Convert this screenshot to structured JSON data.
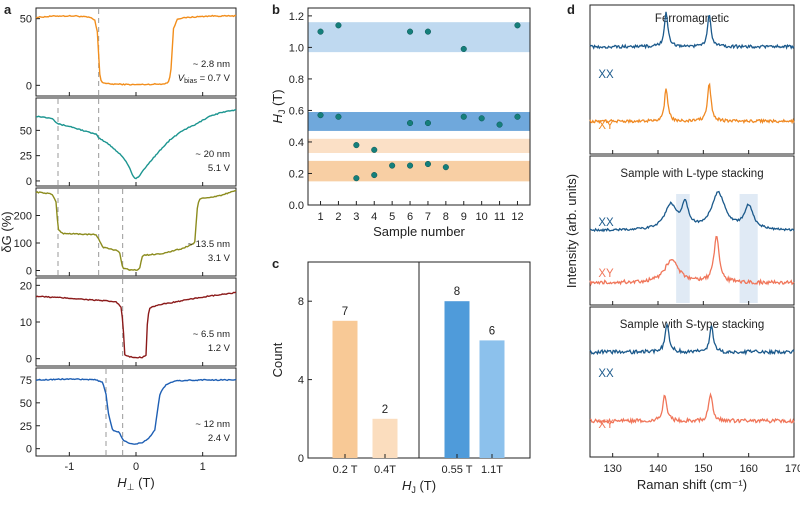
{
  "panel_labels": {
    "a": "a",
    "b": "b",
    "c": "c",
    "d": "d"
  },
  "chart_data": [
    {
      "panel": "a",
      "type": "line",
      "xlabel": "H⊥ (T)",
      "ylabel": "δG (%)",
      "xlim": [
        -1.5,
        1.5
      ],
      "xticks": [
        "-1",
        "0",
        "1"
      ],
      "subplots": [
        {
          "label1": "~ 2.8 nm",
          "label2_prefix": "V",
          "label2_sub": "bias",
          "label2_suffix": " = 0.7 V",
          "color": "#F28E1C",
          "ylim": [
            -8,
            58
          ],
          "yticks": [
            0,
            50
          ],
          "x": [
            -1.5,
            -1.2,
            -0.9,
            -0.7,
            -0.62,
            -0.58,
            -0.54,
            -0.5,
            -0.4,
            0,
            0.4,
            0.48,
            0.52,
            0.56,
            0.62,
            0.8,
            1.1,
            1.5
          ],
          "y": [
            51,
            52,
            52,
            51,
            49,
            40,
            5,
            2,
            1,
            0.5,
            1,
            2,
            8,
            42,
            50,
            51,
            52,
            52
          ],
          "dashed_x": [
            -0.56
          ]
        },
        {
          "label1": "~ 20 nm",
          "label2": "5.1 V",
          "color": "#1C9590",
          "ylim": [
            -5,
            82
          ],
          "yticks": [
            0,
            25,
            50
          ],
          "x": [
            -1.5,
            -1.25,
            -1.2,
            -1.15,
            -1.0,
            -0.8,
            -0.6,
            -0.55,
            -0.4,
            -0.2,
            -0.1,
            -0.05,
            0,
            0.05,
            0.15,
            0.3,
            0.5,
            0.7,
            0.9,
            1.0,
            1.1,
            1.3,
            1.5
          ],
          "y": [
            64,
            62,
            58,
            56,
            54,
            50,
            46,
            42,
            36,
            24,
            14,
            5,
            2,
            5,
            14,
            26,
            40,
            50,
            56,
            60,
            64,
            68,
            70
          ],
          "dashed_x": [
            -1.17,
            -0.56
          ]
        },
        {
          "label1": "~ 13.5 nm",
          "label2": "3.1 V",
          "color": "#8C8C1E",
          "ylim": [
            -20,
            300
          ],
          "yticks": [
            0,
            100,
            200
          ],
          "x": [
            -1.5,
            -1.3,
            -1.25,
            -1.2,
            -1.17,
            -1.1,
            -0.6,
            -0.56,
            -0.5,
            -0.25,
            -0.2,
            -0.1,
            0,
            0.05,
            0.1,
            0.4,
            0.7,
            0.88,
            0.92,
            0.95,
            1.1,
            1.3,
            1.5
          ],
          "y": [
            285,
            280,
            275,
            250,
            150,
            135,
            130,
            115,
            85,
            70,
            10,
            2,
            2,
            5,
            55,
            62,
            80,
            100,
            230,
            260,
            265,
            275,
            290
          ],
          "dashed_x": [
            -1.17,
            -0.56,
            -0.2
          ]
        },
        {
          "label1": "~ 6.5 nm",
          "label2": "1.2 V",
          "color": "#8B1A1A",
          "ylim": [
            -2,
            22
          ],
          "yticks": [
            0,
            10,
            20
          ],
          "x": [
            -1.5,
            -1.0,
            -0.5,
            -0.3,
            -0.22,
            -0.19,
            -0.17,
            -0.1,
            0,
            0.1,
            0.15,
            0.17,
            0.2,
            0.3,
            0.6,
            1.0,
            1.5
          ],
          "y": [
            17,
            16.5,
            15.8,
            15.5,
            14,
            8,
            1,
            0.5,
            0.3,
            0.4,
            1,
            10,
            13.8,
            14.5,
            15.5,
            16.8,
            18
          ],
          "dashed_x": [
            -0.2
          ]
        },
        {
          "label1": "~ 12 nm",
          "label2": "2.4 V",
          "color": "#1E5FB4",
          "ylim": [
            -8,
            88
          ],
          "yticks": [
            0,
            25,
            50,
            75
          ],
          "x": [
            -1.5,
            -1.0,
            -0.6,
            -0.5,
            -0.45,
            -0.42,
            -0.35,
            -0.25,
            -0.2,
            -0.1,
            0,
            0.1,
            0.2,
            0.28,
            0.32,
            0.36,
            0.45,
            0.6,
            1.0,
            1.5
          ],
          "y": [
            75,
            76,
            75,
            72,
            60,
            40,
            20,
            18,
            10,
            6,
            5,
            7,
            12,
            20,
            40,
            60,
            70,
            74,
            75,
            75
          ],
          "dashed_x": [
            -0.45,
            -0.2
          ]
        }
      ]
    },
    {
      "panel": "b",
      "type": "scatter",
      "xlabel": "Sample number",
      "ylabel": "HJ (T)",
      "ylabel_main": "H",
      "ylabel_sub": "J",
      "ylabel_unit": " (T)",
      "xlim": [
        0.3,
        12.7
      ],
      "ylim": [
        0,
        1.25
      ],
      "xticks": [
        "1",
        "2",
        "3",
        "4",
        "5",
        "6",
        "7",
        "8",
        "9",
        "10",
        "11",
        "12"
      ],
      "yticks": [
        "0.0",
        "0.2",
        "0.4",
        "0.6",
        "0.8",
        "1.0",
        "1.2"
      ],
      "bands": [
        {
          "range": [
            0.97,
            1.16
          ],
          "color": "#BFD9F0"
        },
        {
          "range": [
            0.47,
            0.59
          ],
          "color": "#6FA8DC"
        },
        {
          "range": [
            0.33,
            0.42
          ],
          "color": "#FBE0C6"
        },
        {
          "range": [
            0.15,
            0.28
          ],
          "color": "#F8CFA4"
        }
      ],
      "points": [
        {
          "x": 1,
          "y": 1.1
        },
        {
          "x": 2,
          "y": 1.14
        },
        {
          "x": 6,
          "y": 1.1
        },
        {
          "x": 7,
          "y": 1.1
        },
        {
          "x": 9,
          "y": 0.99
        },
        {
          "x": 12,
          "y": 1.14
        },
        {
          "x": 1,
          "y": 0.57
        },
        {
          "x": 2,
          "y": 0.56
        },
        {
          "x": 6,
          "y": 0.52
        },
        {
          "x": 7,
          "y": 0.52
        },
        {
          "x": 9,
          "y": 0.56
        },
        {
          "x": 10,
          "y": 0.55
        },
        {
          "x": 11,
          "y": 0.51
        },
        {
          "x": 12,
          "y": 0.56
        },
        {
          "x": 3,
          "y": 0.38
        },
        {
          "x": 4,
          "y": 0.35
        },
        {
          "x": 3,
          "y": 0.17
        },
        {
          "x": 4,
          "y": 0.19
        },
        {
          "x": 5,
          "y": 0.25
        },
        {
          "x": 6,
          "y": 0.25
        },
        {
          "x": 7,
          "y": 0.26
        },
        {
          "x": 8,
          "y": 0.24
        }
      ]
    },
    {
      "panel": "c",
      "type": "bar",
      "xlabel": "HJ (T)",
      "xlabel_main": "H",
      "xlabel_sub": "J",
      "xlabel_unit": " (T)",
      "ylabel": "Count",
      "ylim": [
        0,
        10
      ],
      "yticks": [
        "0",
        "4",
        "8"
      ],
      "categories": [
        "0.2 T",
        "0.4T",
        "0.55 T",
        "1.1T"
      ],
      "values": [
        7,
        2,
        8,
        6
      ],
      "colors": [
        "#F8C996",
        "#FBDDBE",
        "#4F9BDA",
        "#8CC1EC"
      ]
    },
    {
      "panel": "d",
      "type": "line",
      "xlabel": "Raman shift (cm⁻¹)",
      "ylabel": "Intensity (arb. units)",
      "xlim": [
        125,
        170
      ],
      "xticks": [
        "130",
        "140",
        "150",
        "160",
        "170"
      ],
      "subplots": [
        {
          "title": "Ferromagnetic",
          "series": [
            {
              "name": "XX",
              "color": "#1C5A8C",
              "baseline": 0.28,
              "peaks": [
                [
                  141.8,
                  0.42,
                  0.45
                ],
                [
                  151.3,
                  0.4,
                  0.45
                ]
              ],
              "noise": 0.02
            },
            {
              "name": "XY",
              "color": "#F08A24",
              "baseline": 0.78,
              "peaks": [
                [
                  141.8,
                  0.4,
                  0.45
                ],
                [
                  151.3,
                  0.48,
                  0.45
                ]
              ],
              "noise": 0.02
            }
          ]
        },
        {
          "title": "Sample with L-type stacking",
          "highlight_ranges": [
            [
              144,
              147
            ],
            [
              158,
              162
            ]
          ],
          "series": [
            {
              "name": "XX",
              "color": "#1C5A8C",
              "baseline": 0.5,
              "peaks": [
                [
                  142.8,
                  0.3,
                  1.6
                ],
                [
                  146,
                  0.28,
                  0.9
                ],
                [
                  153.3,
                  0.45,
                  1.8
                ],
                [
                  160,
                  0.28,
                  1.2
                ]
              ],
              "noise": 0.015
            },
            {
              "name": "XY",
              "color": "#F0765A",
              "baseline": 0.85,
              "peaks": [
                [
                  143,
                  0.28,
                  1.8
                ],
                [
                  152.9,
                  0.55,
                  0.7
                ]
              ],
              "noise": 0.025
            }
          ]
        },
        {
          "title": "Sample with S-type stacking",
          "series": [
            {
              "name": "XX",
              "color": "#1C5A8C",
              "baseline": 0.3,
              "peaks": [
                [
                  142,
                  0.34,
                  0.5
                ],
                [
                  151.8,
                  0.3,
                  0.5
                ]
              ],
              "noise": 0.025
            },
            {
              "name": "XY",
              "color": "#F0765A",
              "baseline": 0.76,
              "peaks": [
                [
                  141.5,
                  0.32,
                  0.5
                ],
                [
                  151.6,
                  0.33,
                  0.5
                ]
              ],
              "noise": 0.025
            }
          ]
        }
      ]
    }
  ]
}
